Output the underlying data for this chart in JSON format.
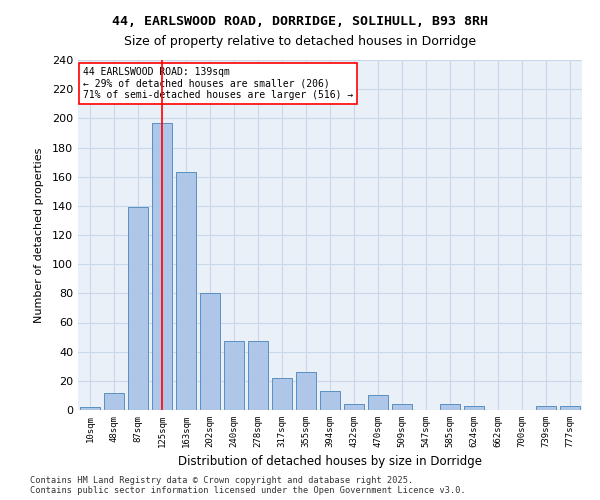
{
  "title_line1": "44, EARLSWOOD ROAD, DORRIDGE, SOLIHULL, B93 8RH",
  "title_line2": "Size of property relative to detached houses in Dorridge",
  "xlabel": "Distribution of detached houses by size in Dorridge",
  "ylabel": "Number of detached properties",
  "categories": [
    "10sqm",
    "48sqm",
    "87sqm",
    "125sqm",
    "163sqm",
    "202sqm",
    "240sqm",
    "278sqm",
    "317sqm",
    "355sqm",
    "394sqm",
    "432sqm",
    "470sqm",
    "509sqm",
    "547sqm",
    "585sqm",
    "624sqm",
    "662sqm",
    "700sqm",
    "739sqm",
    "777sqm"
  ],
  "values": [
    2,
    12,
    139,
    197,
    163,
    80,
    47,
    47,
    22,
    26,
    13,
    4,
    10,
    4,
    0,
    4,
    3,
    0,
    0,
    3,
    3
  ],
  "bar_color": "#aec6e8",
  "bar_edge_color": "#5a8fc2",
  "grid_color": "#c8d8e8",
  "background_color": "#eaf0f8",
  "vline_x": 3,
  "vline_color": "red",
  "annotation_text": "44 EARLSWOOD ROAD: 139sqm\n← 29% of detached houses are smaller (206)\n71% of semi-detached houses are larger (516) →",
  "annotation_box_color": "white",
  "annotation_box_edge": "red",
  "footer_text": "Contains HM Land Registry data © Crown copyright and database right 2025.\nContains public sector information licensed under the Open Government Licence v3.0.",
  "ylim": [
    0,
    240
  ],
  "yticks": [
    0,
    20,
    40,
    60,
    80,
    100,
    120,
    140,
    160,
    180,
    200,
    220,
    240
  ]
}
